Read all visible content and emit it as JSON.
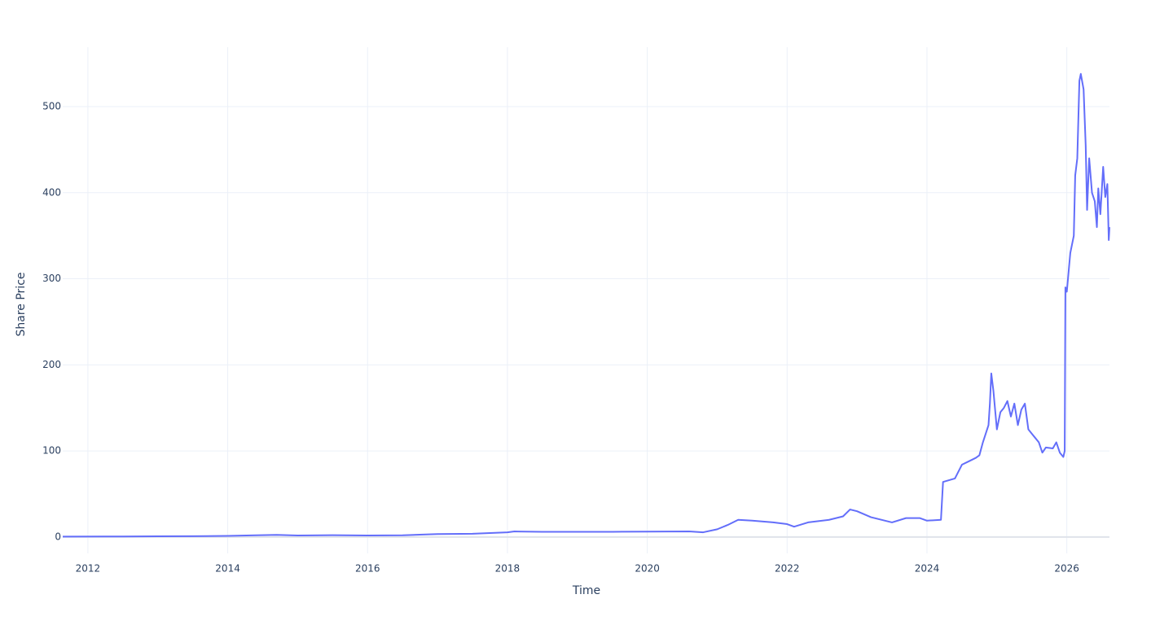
{
  "chart_data": {
    "type": "line",
    "x_label": "Time",
    "y_label": "Share Price",
    "x": [
      2011.64,
      2012.5,
      2013,
      2013.5,
      2014,
      2014.4,
      2014.7,
      2015,
      2015.5,
      2016,
      2016.5,
      2017,
      2017.5,
      2018,
      2018.1,
      2018.5,
      2019,
      2019.5,
      2020,
      2020.6,
      2020.8,
      2021,
      2021.15,
      2021.3,
      2021.5,
      2021.8,
      2022,
      2022.1,
      2022.3,
      2022.6,
      2022.8,
      2022.9,
      2023,
      2023.2,
      2023.5,
      2023.7,
      2023.9,
      2024,
      2024.2,
      2024.23,
      2024.4,
      2024.5,
      2024.6,
      2024.7,
      2024.75,
      2024.8,
      2024.88,
      2024.9,
      2024.92,
      2024.95,
      2025,
      2025.05,
      2025.1,
      2025.15,
      2025.2,
      2025.25,
      2025.3,
      2025.35,
      2025.4,
      2025.45,
      2025.5,
      2025.6,
      2025.65,
      2025.7,
      2025.8,
      2025.85,
      2025.9,
      2025.95,
      2025.97,
      2025.98,
      2026,
      2026.05,
      2026.1,
      2026.12,
      2026.15,
      2026.18,
      2026.2,
      2026.24,
      2026.27,
      2026.29,
      2026.32,
      2026.36,
      2026.4,
      2026.43,
      2026.45,
      2026.48,
      2026.52,
      2026.55,
      2026.58,
      2026.6,
      2026.61
    ],
    "series": [
      {
        "name": "Share Price",
        "color": "#636efa",
        "values": [
          0.5,
          0.6,
          0.8,
          1.0,
          1.3,
          2.0,
          2.5,
          1.8,
          2.2,
          1.8,
          2.0,
          3.5,
          3.8,
          5.5,
          6.5,
          6.0,
          6.0,
          6.1,
          6.3,
          6.5,
          5.5,
          9,
          14,
          20,
          19,
          17,
          15,
          12,
          17,
          20,
          24,
          32,
          30,
          23,
          17,
          22,
          22,
          19,
          20,
          64,
          68,
          84,
          88,
          92,
          95,
          110,
          130,
          155,
          190,
          170,
          125,
          145,
          150,
          158,
          140,
          155,
          130,
          148,
          155,
          125,
          120,
          110,
          98,
          104,
          103,
          110,
          98,
          93,
          100,
          290,
          285,
          330,
          350,
          420,
          440,
          530,
          538,
          520,
          455,
          380,
          440,
          400,
          390,
          360,
          405,
          375,
          430,
          395,
          410,
          345,
          360
        ]
      }
    ],
    "xlim": [
      2011.64,
      2026.61
    ],
    "xticks": [
      2012,
      2014,
      2016,
      2018,
      2020,
      2022,
      2024,
      2026
    ],
    "ylim": [
      -19,
      569
    ],
    "yticks": [
      0,
      100,
      200,
      300,
      400,
      500
    ],
    "grid": true
  }
}
